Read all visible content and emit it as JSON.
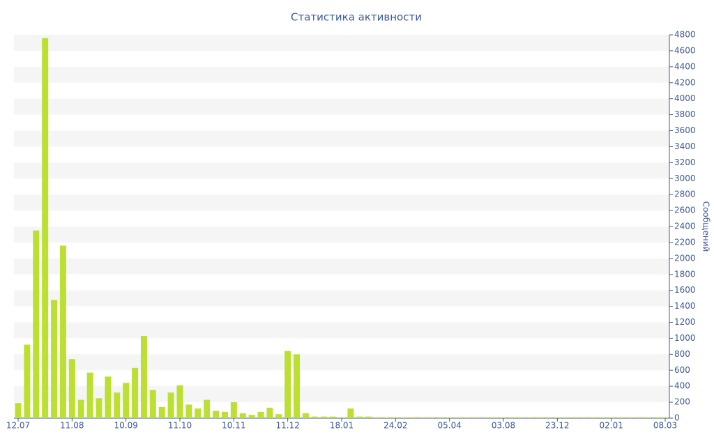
{
  "chart_data": {
    "type": "bar",
    "title": "Статистика активности",
    "y_axis_label": "Сообщений",
    "categories": [
      "12.07",
      null,
      null,
      null,
      null,
      null,
      "11.08",
      null,
      null,
      null,
      null,
      null,
      "10.09",
      null,
      null,
      null,
      null,
      null,
      "11.10",
      null,
      null,
      null,
      null,
      null,
      "10.11",
      null,
      null,
      null,
      null,
      null,
      "11.12",
      null,
      null,
      null,
      null,
      null,
      "18.01",
      null,
      null,
      null,
      null,
      null,
      "24.02",
      null,
      null,
      null,
      null,
      null,
      "05.04",
      null,
      null,
      null,
      null,
      null,
      "03.08",
      null,
      null,
      null,
      null,
      null,
      "23.12",
      null,
      null,
      null,
      null,
      null,
      "02.01",
      null,
      null,
      null,
      null,
      null,
      "08.03"
    ],
    "values": [
      190,
      920,
      2350,
      4760,
      1480,
      2160,
      740,
      230,
      570,
      250,
      520,
      320,
      440,
      630,
      1030,
      350,
      140,
      320,
      410,
      170,
      120,
      230,
      90,
      80,
      200,
      60,
      40,
      80,
      130,
      50,
      840,
      800,
      60,
      20,
      20,
      20,
      10,
      120,
      20,
      20,
      10,
      10,
      10,
      10,
      10,
      10,
      10,
      10,
      10,
      10,
      10,
      10,
      10,
      10,
      10,
      10,
      10,
      10,
      10,
      10,
      10,
      10,
      10,
      10,
      10,
      10,
      10,
      10,
      10,
      10,
      10,
      10,
      10
    ],
    "color": "#bce031",
    "ylim": [
      0,
      4800
    ],
    "yticks": [
      0,
      200,
      400,
      600,
      800,
      1000,
      1200,
      1400,
      1600,
      1800,
      2000,
      2200,
      2400,
      2600,
      2800,
      3000,
      3200,
      3400,
      3600,
      3800,
      4000,
      4200,
      4400,
      4600,
      4800
    ],
    "y_axis_side": "right",
    "grid": true
  }
}
